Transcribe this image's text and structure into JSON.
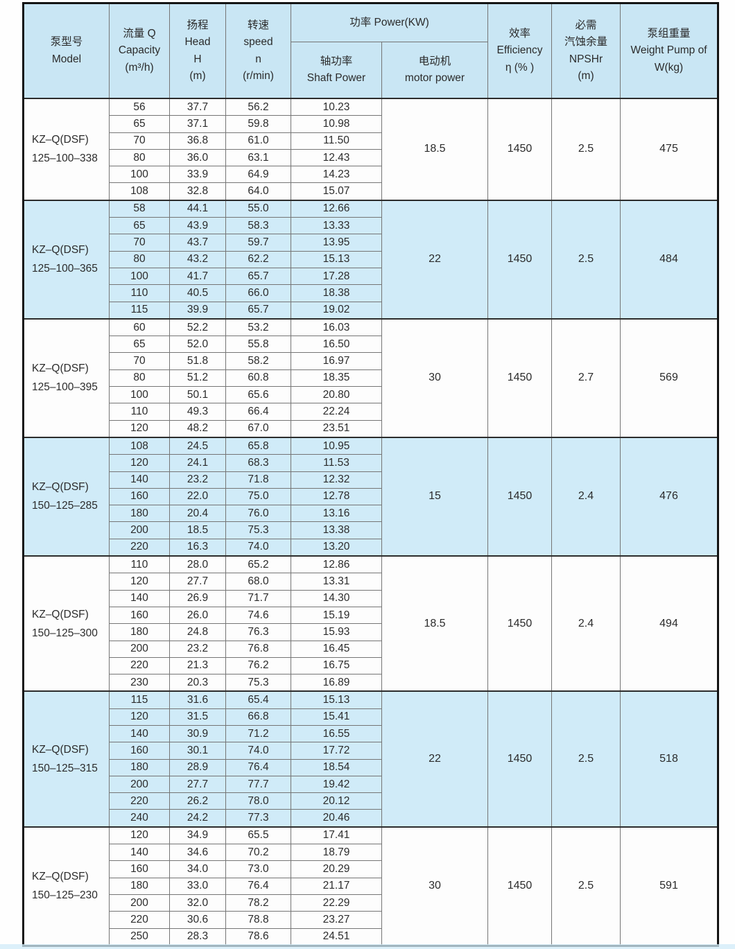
{
  "table": {
    "colors": {
      "header_bg": "#c9e6f4",
      "stripe_bg": "#d0ebf8"
    },
    "header": {
      "model": {
        "zh": "泵型号",
        "en": "Model"
      },
      "capacity": {
        "zh": "流量 Q",
        "en": "Capacity",
        "unit": "(m³/h)"
      },
      "head": {
        "zh": "扬程",
        "en": "Head",
        "symbol": "H",
        "unit": "(m)"
      },
      "speed": {
        "zh": "转速",
        "en": "speed",
        "symbol": "n",
        "unit": "(r/min)"
      },
      "power": "功率 Power(KW)",
      "shaft_power": {
        "zh": "轴功率",
        "en": "Shaft Power"
      },
      "motor_power": {
        "zh": "电动机",
        "en": "motor power"
      },
      "efficiency": {
        "zh": "效率",
        "en": "Efficiency",
        "symbol": "η (% )"
      },
      "npshr": {
        "zh1": "必需",
        "zh2": "汽蚀余量",
        "en": "NPSHr",
        "unit": "(m)"
      },
      "weight": {
        "zh": "泵组重量",
        "en": "Weight Pump of",
        "unit": "W(kg)"
      }
    },
    "groups": [
      {
        "model_line1": "KZ–Q(DSF)",
        "model_line2": "125–100–338",
        "motor_power": "18.5",
        "efficiency": "1450",
        "npshr": "2.5",
        "weight": "475",
        "rows": [
          [
            "56",
            "37.7",
            "56.2",
            "10.23"
          ],
          [
            "65",
            "37.1",
            "59.8",
            "10.98"
          ],
          [
            "70",
            "36.8",
            "61.0",
            "11.50"
          ],
          [
            "80",
            "36.0",
            "63.1",
            "12.43"
          ],
          [
            "100",
            "33.9",
            "64.9",
            "14.23"
          ],
          [
            "108",
            "32.8",
            "64.0",
            "15.07"
          ]
        ]
      },
      {
        "model_line1": "KZ–Q(DSF)",
        "model_line2": "125–100–365",
        "motor_power": "22",
        "efficiency": "1450",
        "npshr": "2.5",
        "weight": "484",
        "rows": [
          [
            "58",
            "44.1",
            "55.0",
            "12.66"
          ],
          [
            "65",
            "43.9",
            "58.3",
            "13.33"
          ],
          [
            "70",
            "43.7",
            "59.7",
            "13.95"
          ],
          [
            "80",
            "43.2",
            "62.2",
            "15.13"
          ],
          [
            "100",
            "41.7",
            "65.7",
            "17.28"
          ],
          [
            "110",
            "40.5",
            "66.0",
            "18.38"
          ],
          [
            "115",
            "39.9",
            "65.7",
            "19.02"
          ]
        ]
      },
      {
        "model_line1": "KZ–Q(DSF)",
        "model_line2": "125–100–395",
        "motor_power": "30",
        "efficiency": "1450",
        "npshr": "2.7",
        "weight": "569",
        "rows": [
          [
            "60",
            "52.2",
            "53.2",
            "16.03"
          ],
          [
            "65",
            "52.0",
            "55.8",
            "16.50"
          ],
          [
            "70",
            "51.8",
            "58.2",
            "16.97"
          ],
          [
            "80",
            "51.2",
            "60.8",
            "18.35"
          ],
          [
            "100",
            "50.1",
            "65.6",
            "20.80"
          ],
          [
            "110",
            "49.3",
            "66.4",
            "22.24"
          ],
          [
            "120",
            "48.2",
            "67.0",
            "23.51"
          ]
        ]
      },
      {
        "model_line1": "KZ–Q(DSF)",
        "model_line2": "150–125–285",
        "motor_power": "15",
        "efficiency": "1450",
        "npshr": "2.4",
        "weight": "476",
        "rows": [
          [
            "108",
            "24.5",
            "65.8",
            "10.95"
          ],
          [
            "120",
            "24.1",
            "68.3",
            "11.53"
          ],
          [
            "140",
            "23.2",
            "71.8",
            "12.32"
          ],
          [
            "160",
            "22.0",
            "75.0",
            "12.78"
          ],
          [
            "180",
            "20.4",
            "76.0",
            "13.16"
          ],
          [
            "200",
            "18.5",
            "75.3",
            "13.38"
          ],
          [
            "220",
            "16.3",
            "74.0",
            "13.20"
          ]
        ]
      },
      {
        "model_line1": "KZ–Q(DSF)",
        "model_line2": "150–125–300",
        "motor_power": "18.5",
        "efficiency": "1450",
        "npshr": "2.4",
        "weight": "494",
        "rows": [
          [
            "110",
            "28.0",
            "65.2",
            "12.86"
          ],
          [
            "120",
            "27.7",
            "68.0",
            "13.31"
          ],
          [
            "140",
            "26.9",
            "71.7",
            "14.30"
          ],
          [
            "160",
            "26.0",
            "74.6",
            "15.19"
          ],
          [
            "180",
            "24.8",
            "76.3",
            "15.93"
          ],
          [
            "200",
            "23.2",
            "76.8",
            "16.45"
          ],
          [
            "220",
            "21.3",
            "76.2",
            "16.75"
          ],
          [
            "230",
            "20.3",
            "75.3",
            "16.89"
          ]
        ]
      },
      {
        "model_line1": "KZ–Q(DSF)",
        "model_line2": "150–125–315",
        "motor_power": "22",
        "efficiency": "1450",
        "npshr": "2.5",
        "weight": "518",
        "rows": [
          [
            "115",
            "31.6",
            "65.4",
            "15.13"
          ],
          [
            "120",
            "31.5",
            "66.8",
            "15.41"
          ],
          [
            "140",
            "30.9",
            "71.2",
            "16.55"
          ],
          [
            "160",
            "30.1",
            "74.0",
            "17.72"
          ],
          [
            "180",
            "28.9",
            "76.4",
            "18.54"
          ],
          [
            "200",
            "27.7",
            "77.7",
            "19.42"
          ],
          [
            "220",
            "26.2",
            "78.0",
            "20.12"
          ],
          [
            "240",
            "24.2",
            "77.3",
            "20.46"
          ]
        ]
      },
      {
        "model_line1": "KZ–Q(DSF)",
        "model_line2": "150–125–230",
        "motor_power": "30",
        "efficiency": "1450",
        "npshr": "2.5",
        "weight": "591",
        "rows": [
          [
            "120",
            "34.9",
            "65.5",
            "17.41"
          ],
          [
            "140",
            "34.6",
            "70.2",
            "18.79"
          ],
          [
            "160",
            "34.0",
            "73.0",
            "20.29"
          ],
          [
            "180",
            "33.0",
            "76.4",
            "21.17"
          ],
          [
            "200",
            "32.0",
            "78.2",
            "22.29"
          ],
          [
            "220",
            "30.6",
            "78.8",
            "23.27"
          ],
          [
            "250",
            "28.3",
            "78.6",
            "24.51"
          ]
        ]
      }
    ]
  }
}
